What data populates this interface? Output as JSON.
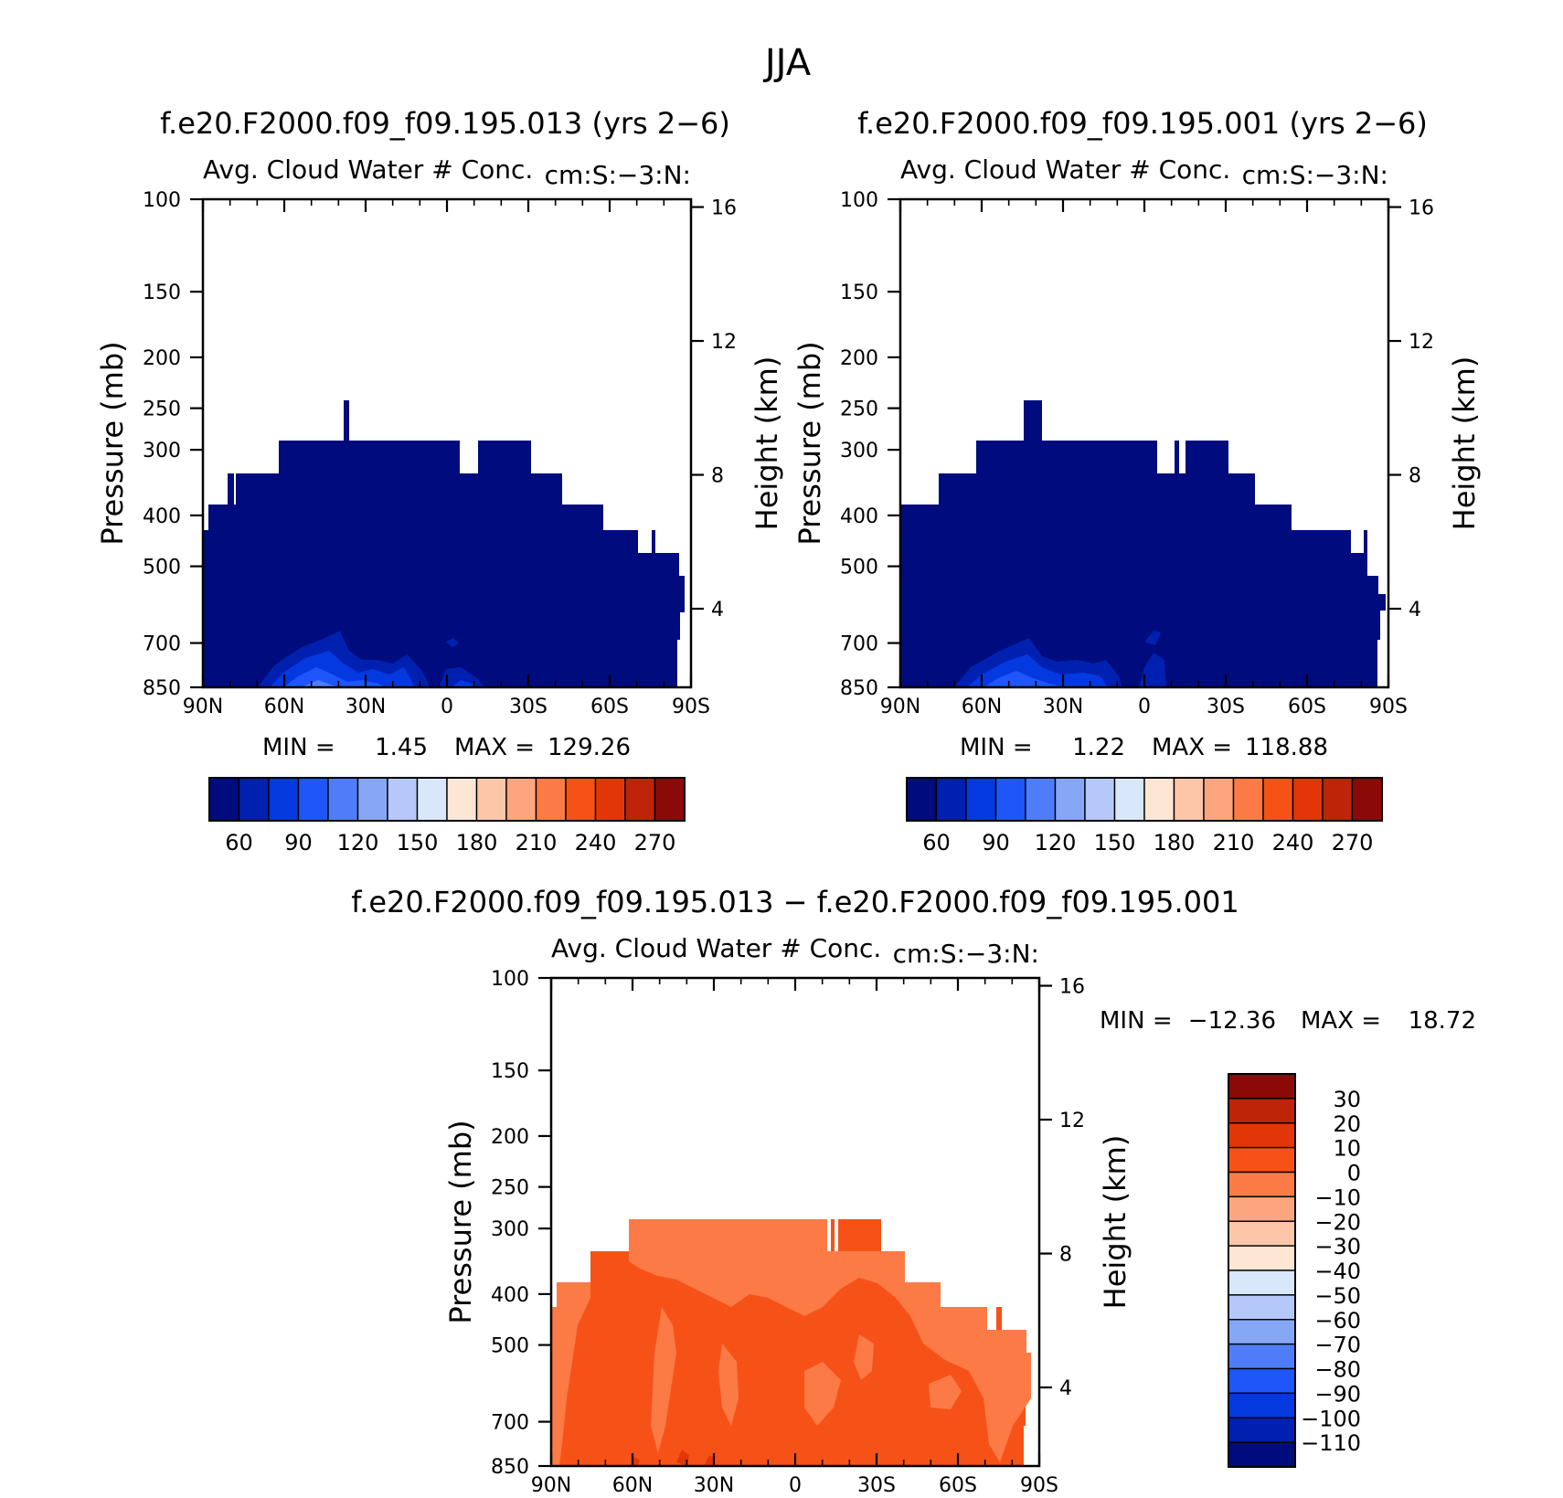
{
  "figure": {
    "title": "JJA"
  },
  "chart_data": [
    {
      "type": "heatmap",
      "id": "panel-013",
      "title": "f.e20.F2000.f09_f09.195.013 (yrs 2−6)",
      "subtitle": "Avg. Cloud Water # Conc.",
      "units_label": "cm:S:−3:N:",
      "ylabel": "Pressure (mb)",
      "ylabel_right": "Height (km)",
      "x_ticks": [
        "90N",
        "60N",
        "30N",
        "0",
        "30S",
        "60S",
        "90S"
      ],
      "y_ticks": [
        "100",
        "150",
        "200",
        "250",
        "300",
        "400",
        "500",
        "700",
        "850"
      ],
      "y_ticks_right": [
        "16",
        "12",
        "8",
        "4"
      ],
      "stats": {
        "min_label": "MIN =",
        "min_value": "1.45",
        "max_label": "MAX =",
        "max_value": "129.26"
      },
      "colorbar": {
        "orientation": "horizontal",
        "labels": [
          "60",
          "90",
          "120",
          "150",
          "180",
          "210",
          "240",
          "270"
        ],
        "colors": [
          "#000c7d",
          "#0020b0",
          "#0539e0",
          "#1e56fa",
          "#4f7dfa",
          "#86a6f6",
          "#b5c8f9",
          "#d9e7fb",
          "#fde6d3",
          "#fdc6a9",
          "#fca57e",
          "#fb7a45",
          "#f65218",
          "#e23608",
          "#bd2408",
          "#8b0a07"
        ]
      },
      "fill_color": "#000c7d",
      "ylim": [
        850,
        100
      ],
      "xlim": [
        "90N",
        "90S"
      ],
      "grid": false
    },
    {
      "type": "heatmap",
      "id": "panel-001",
      "title": "f.e20.F2000.f09_f09.195.001 (yrs 2−6)",
      "subtitle": "Avg. Cloud Water # Conc.",
      "units_label": "cm:S:−3:N:",
      "ylabel": "Pressure (mb)",
      "ylabel_right": "Height (km)",
      "x_ticks": [
        "90N",
        "60N",
        "30N",
        "0",
        "30S",
        "60S",
        "90S"
      ],
      "y_ticks": [
        "100",
        "150",
        "200",
        "250",
        "300",
        "400",
        "500",
        "700",
        "850"
      ],
      "y_ticks_right": [
        "16",
        "12",
        "8",
        "4"
      ],
      "stats": {
        "min_label": "MIN =",
        "min_value": "1.22",
        "max_label": "MAX =",
        "max_value": "118.88"
      },
      "colorbar": {
        "orientation": "horizontal",
        "labels": [
          "60",
          "90",
          "120",
          "150",
          "180",
          "210",
          "240",
          "270"
        ],
        "colors": [
          "#000c7d",
          "#0020b0",
          "#0539e0",
          "#1e56fa",
          "#4f7dfa",
          "#86a6f6",
          "#b5c8f9",
          "#d9e7fb",
          "#fde6d3",
          "#fdc6a9",
          "#fca57e",
          "#fb7a45",
          "#f65218",
          "#e23608",
          "#bd2408",
          "#8b0a07"
        ]
      },
      "fill_color": "#000c7d",
      "ylim": [
        850,
        100
      ],
      "xlim": [
        "90N",
        "90S"
      ],
      "grid": false
    },
    {
      "type": "heatmap",
      "id": "panel-diff",
      "title": "f.e20.F2000.f09_f09.195.013 − f.e20.F2000.f09_f09.195.001",
      "subtitle": "Avg. Cloud Water # Conc.",
      "units_label": "cm:S:−3:N:",
      "ylabel": "Pressure (mb)",
      "ylabel_right": "Height (km)",
      "x_ticks": [
        "90N",
        "60N",
        "30N",
        "0",
        "30S",
        "60S",
        "90S"
      ],
      "y_ticks": [
        "100",
        "150",
        "200",
        "250",
        "300",
        "400",
        "500",
        "700",
        "850"
      ],
      "y_ticks_right": [
        "16",
        "12",
        "8",
        "4"
      ],
      "stats": {
        "min_label": "MIN =",
        "min_value": "−12.36",
        "max_label": "MAX =",
        "max_value": "18.72"
      },
      "colorbar": {
        "orientation": "vertical",
        "labels": [
          "30",
          "20",
          "10",
          "0",
          "−10",
          "−20",
          "−30",
          "−40",
          "−50",
          "−60",
          "−70",
          "−80",
          "−90",
          "−100",
          "−110"
        ],
        "colors": [
          "#8b0a07",
          "#bd2408",
          "#e23608",
          "#f65218",
          "#fb7a45",
          "#fca57e",
          "#fdc6a9",
          "#fde6d3",
          "#d9e7fb",
          "#b5c8f9",
          "#86a6f6",
          "#4f7dfa",
          "#1e56fa",
          "#0539e0",
          "#0020b0",
          "#000c7d"
        ]
      },
      "fill_color": "#f65218",
      "ylim": [
        850,
        100
      ],
      "xlim": [
        "90N",
        "90S"
      ],
      "grid": false
    }
  ]
}
